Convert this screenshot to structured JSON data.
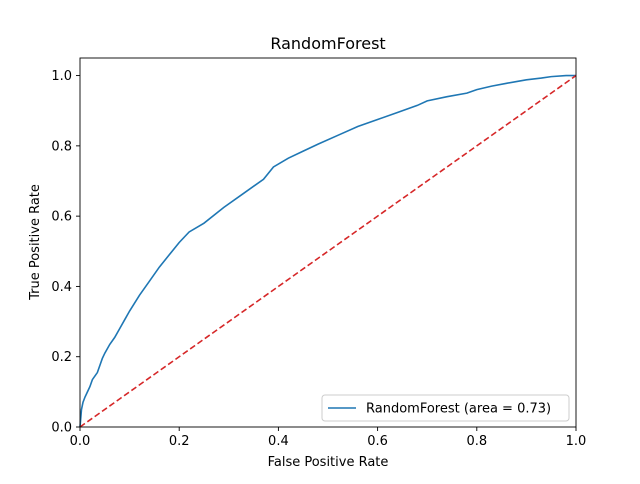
{
  "chart_data": {
    "type": "line",
    "title": "RandomForest",
    "xlabel": "False Positive Rate",
    "ylabel": "True Positive Rate",
    "xlim": [
      0.0,
      1.0
    ],
    "ylim": [
      0.0,
      1.05
    ],
    "x_ticks": [
      "0.0",
      "0.2",
      "0.4",
      "0.6",
      "0.8",
      "1.0"
    ],
    "y_ticks": [
      "0.0",
      "0.2",
      "0.4",
      "0.6",
      "0.8",
      "1.0"
    ],
    "grid": false,
    "legend_position": "lower right",
    "series": [
      {
        "name": "RandomForest (area = 0.73)",
        "color": "#1f77b4",
        "style": "solid",
        "x": [
          0.0,
          0.003,
          0.006,
          0.01,
          0.015,
          0.02,
          0.025,
          0.03,
          0.035,
          0.04,
          0.045,
          0.05,
          0.06,
          0.07,
          0.08,
          0.09,
          0.1,
          0.12,
          0.14,
          0.16,
          0.18,
          0.2,
          0.22,
          0.25,
          0.29,
          0.33,
          0.37,
          0.39,
          0.42,
          0.45,
          0.48,
          0.52,
          0.56,
          0.6,
          0.64,
          0.68,
          0.7,
          0.74,
          0.78,
          0.8,
          0.83,
          0.86,
          0.88,
          0.9,
          0.93,
          0.95,
          0.98,
          1.0
        ],
        "y": [
          0.0,
          0.05,
          0.07,
          0.085,
          0.1,
          0.115,
          0.135,
          0.145,
          0.155,
          0.175,
          0.195,
          0.21,
          0.235,
          0.255,
          0.28,
          0.305,
          0.33,
          0.375,
          0.415,
          0.455,
          0.49,
          0.525,
          0.555,
          0.58,
          0.625,
          0.665,
          0.705,
          0.74,
          0.765,
          0.785,
          0.805,
          0.83,
          0.855,
          0.875,
          0.895,
          0.915,
          0.928,
          0.94,
          0.95,
          0.96,
          0.97,
          0.978,
          0.983,
          0.988,
          0.993,
          0.997,
          1.0,
          1.0
        ]
      },
      {
        "color": "#d62728",
        "style": "dashed",
        "x": [
          0.0,
          1.0
        ],
        "y": [
          0.0,
          1.0
        ]
      }
    ]
  }
}
